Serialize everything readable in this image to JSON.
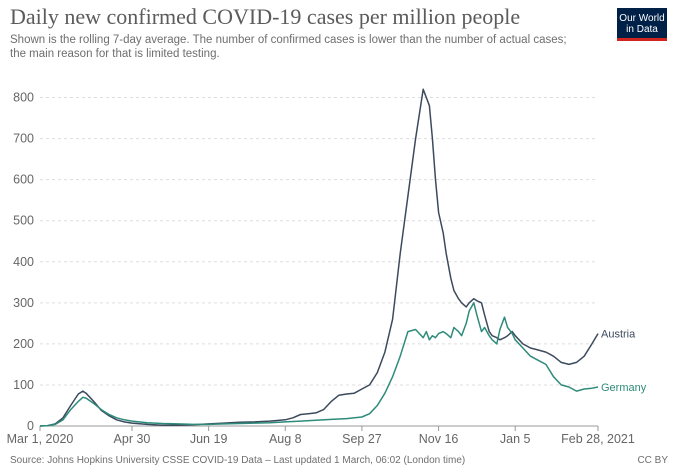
{
  "header": {
    "title": "Daily new confirmed COVID-19 cases per million people",
    "subtitle": "Shown is the rolling 7-day average. The number of confirmed cases is lower than the number of actual cases; the main reason for that is limited testing.",
    "logo_line1": "Our World",
    "logo_line2": "in Data"
  },
  "footer": {
    "source": "Source: Johns Hopkins University CSSE COVID-19 Data – Last updated 1 March, 06:02 (London time)",
    "license": "CC BY"
  },
  "colors": {
    "austria": "#3c4a5e",
    "germany": "#2e8b7a",
    "grid": "#dddddd",
    "axis": "#999999"
  },
  "chart_data": {
    "type": "line",
    "title": "Daily new confirmed COVID-19 cases per million people",
    "xlabel": "",
    "ylabel": "",
    "x_unit": "days since Mar 1, 2020",
    "xlim": [
      0,
      364
    ],
    "ylim": [
      0,
      850
    ],
    "y_ticks": [
      0,
      100,
      200,
      300,
      400,
      500,
      600,
      700,
      800
    ],
    "x_ticks": [
      {
        "day": 0,
        "label": "Mar 1, 2020"
      },
      {
        "day": 60,
        "label": "Apr 30"
      },
      {
        "day": 110,
        "label": "Jun 19"
      },
      {
        "day": 160,
        "label": "Aug 8"
      },
      {
        "day": 210,
        "label": "Sep 27"
      },
      {
        "day": 260,
        "label": "Nov 16"
      },
      {
        "day": 310,
        "label": "Jan 5"
      },
      {
        "day": 364,
        "label": "Feb 28, 2021"
      }
    ],
    "series": [
      {
        "name": "Austria",
        "x": [
          0,
          5,
          10,
          15,
          20,
          25,
          28,
          30,
          35,
          40,
          45,
          50,
          55,
          60,
          70,
          80,
          90,
          100,
          110,
          120,
          130,
          140,
          150,
          160,
          165,
          170,
          175,
          180,
          185,
          190,
          195,
          200,
          205,
          210,
          215,
          220,
          225,
          230,
          235,
          240,
          245,
          250,
          252,
          254,
          256,
          258,
          260,
          263,
          265,
          268,
          270,
          273,
          275,
          278,
          280,
          283,
          285,
          288,
          290,
          293,
          295,
          298,
          300,
          303,
          305,
          308,
          310,
          315,
          320,
          325,
          330,
          335,
          340,
          345,
          350,
          355,
          360,
          364
        ],
        "y": [
          0,
          1,
          5,
          20,
          50,
          78,
          85,
          80,
          60,
          38,
          25,
          15,
          10,
          7,
          4,
          2,
          2,
          3,
          5,
          7,
          9,
          10,
          12,
          15,
          20,
          28,
          30,
          32,
          40,
          60,
          75,
          78,
          80,
          90,
          100,
          130,
          180,
          260,
          420,
          560,
          700,
          820,
          800,
          780,
          700,
          600,
          520,
          470,
          420,
          360,
          330,
          310,
          300,
          290,
          300,
          310,
          305,
          300,
          270,
          230,
          220,
          215,
          210,
          215,
          220,
          230,
          220,
          200,
          190,
          185,
          180,
          170,
          155,
          150,
          155,
          170,
          200,
          225
        ]
      },
      {
        "name": "Germany",
        "x": [
          0,
          5,
          10,
          15,
          20,
          25,
          28,
          30,
          35,
          40,
          45,
          50,
          55,
          60,
          70,
          80,
          90,
          100,
          110,
          120,
          130,
          140,
          150,
          160,
          170,
          180,
          190,
          200,
          210,
          215,
          220,
          225,
          230,
          235,
          240,
          245,
          250,
          252,
          254,
          256,
          258,
          260,
          263,
          265,
          268,
          270,
          273,
          275,
          278,
          280,
          283,
          285,
          288,
          290,
          293,
          295,
          298,
          300,
          303,
          305,
          308,
          310,
          315,
          320,
          325,
          330,
          335,
          340,
          345,
          350,
          355,
          360,
          364
        ],
        "y": [
          0,
          1,
          4,
          15,
          40,
          60,
          70,
          68,
          55,
          40,
          28,
          20,
          15,
          12,
          8,
          6,
          5,
          4,
          4,
          5,
          6,
          7,
          8,
          10,
          12,
          14,
          16,
          18,
          22,
          30,
          50,
          80,
          120,
          170,
          230,
          235,
          215,
          230,
          210,
          220,
          215,
          225,
          230,
          225,
          215,
          240,
          230,
          220,
          250,
          280,
          300,
          270,
          230,
          240,
          220,
          210,
          200,
          235,
          265,
          240,
          225,
          210,
          190,
          170,
          160,
          150,
          120,
          100,
          95,
          85,
          90,
          92,
          95
        ]
      }
    ]
  }
}
